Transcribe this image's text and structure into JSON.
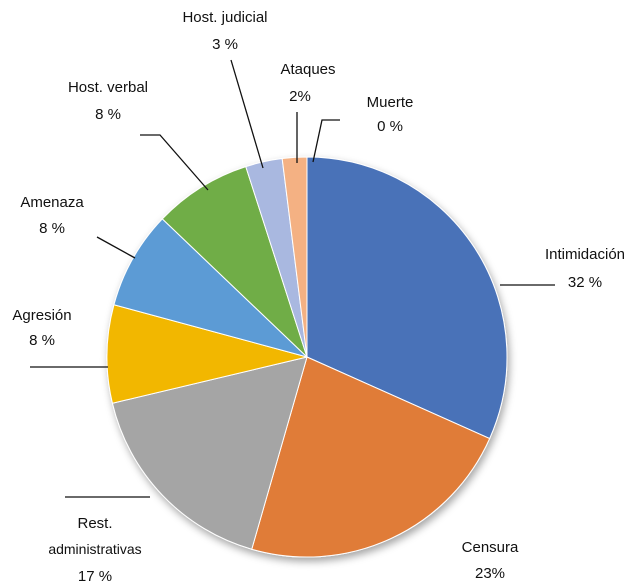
{
  "chart_data": {
    "type": "pie",
    "categories": [
      "Intimidación",
      "Censura",
      "Rest. administrativas",
      "Agresión",
      "Amenaza",
      "Host. verbal",
      "Host. judicial",
      "Ataques",
      "Muerte"
    ],
    "values": [
      32,
      23,
      17,
      8,
      8,
      8,
      3,
      2,
      0
    ],
    "value_labels": [
      "32 %",
      "23%",
      "17 %",
      "8 %",
      "8 %",
      "8 %",
      "3 %",
      "2%",
      "0 %"
    ],
    "colors": [
      "#4a72b8",
      "#e07b39",
      "#a5a5a5",
      "#f2b705",
      "#5b9bd5",
      "#70ad47",
      "#a9b8e0",
      "#f4b183",
      "#c9d6ee"
    ]
  }
}
